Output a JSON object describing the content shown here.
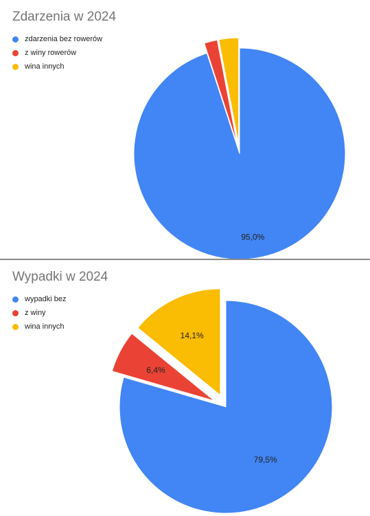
{
  "chart_data": [
    {
      "type": "pie",
      "title": "Zdarzenia w 2024",
      "legend_position": "top-left",
      "series": [
        {
          "name": "zdarzenia bez rowerów",
          "value": 95.0,
          "label": "95,0%",
          "color": "#4285f4",
          "exploded": false
        },
        {
          "name": "z winy rowerów",
          "value": 2.0,
          "label": "",
          "color": "#ea4335",
          "exploded": true
        },
        {
          "name": "wina innych",
          "value": 3.0,
          "label": "",
          "color": "#fbbc04",
          "exploded": true
        }
      ]
    },
    {
      "type": "pie",
      "title": "Wypadki w 2024",
      "legend_position": "top-left",
      "series": [
        {
          "name": "wypadki bez",
          "value": 79.5,
          "label": "79,5%",
          "color": "#4285f4",
          "exploded": false
        },
        {
          "name": "z winy",
          "value": 6.4,
          "label": "6,4%",
          "color": "#ea4335",
          "exploded": true
        },
        {
          "name": "wina innych",
          "value": 14.1,
          "label": "14,1%",
          "color": "#fbbc04",
          "exploded": true
        }
      ]
    }
  ]
}
